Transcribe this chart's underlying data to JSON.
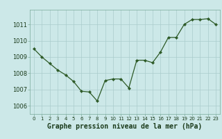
{
  "x": [
    0,
    1,
    2,
    3,
    4,
    5,
    6,
    7,
    8,
    9,
    10,
    11,
    12,
    13,
    14,
    15,
    16,
    17,
    18,
    19,
    20,
    21,
    22,
    23
  ],
  "y": [
    1009.5,
    1009.0,
    1008.6,
    1008.2,
    1007.9,
    1007.5,
    1006.9,
    1006.85,
    1006.3,
    1007.55,
    1007.65,
    1007.65,
    1007.1,
    1008.8,
    1008.8,
    1008.65,
    1009.3,
    1010.2,
    1010.2,
    1011.0,
    1011.3,
    1011.3,
    1011.35,
    1011.0
  ],
  "line_color": "#2d5a27",
  "marker_color": "#2d5a27",
  "bg_color": "#cce8e8",
  "grid_color": "#aacccc",
  "xlabel": "Graphe pression niveau de la mer (hPa)",
  "xlabel_fontsize": 7.0,
  "ytick_labels": [
    "1006",
    "1007",
    "1008",
    "1009",
    "1010",
    "1011"
  ],
  "ytick_values": [
    1006,
    1007,
    1008,
    1009,
    1010,
    1011
  ],
  "ylim": [
    1005.5,
    1011.9
  ],
  "xlim": [
    -0.5,
    23.5
  ],
  "xtick_values": [
    0,
    1,
    2,
    3,
    4,
    5,
    6,
    7,
    8,
    9,
    10,
    11,
    12,
    13,
    14,
    15,
    16,
    17,
    18,
    19,
    20,
    21,
    22,
    23
  ],
  "xtick_fontsize": 5.0,
  "ytick_fontsize": 6.0
}
